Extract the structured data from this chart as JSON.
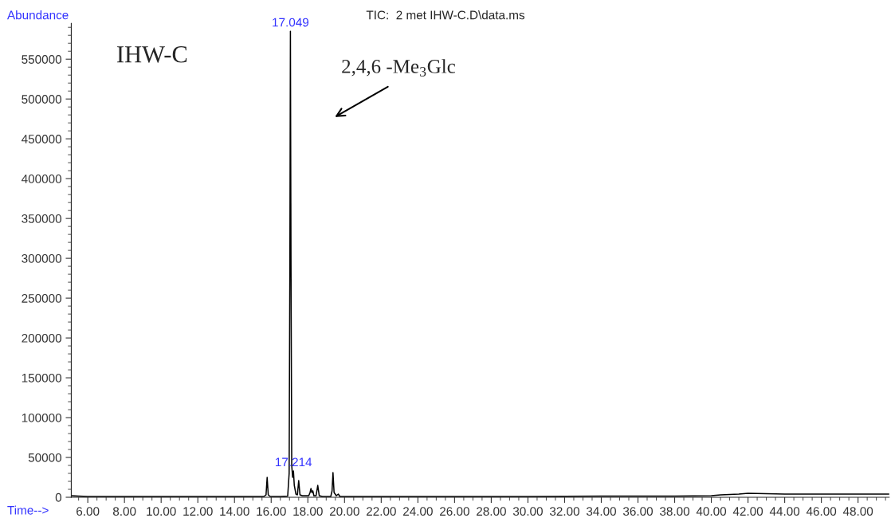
{
  "chart_data": {
    "type": "line",
    "title": "TIC:  2 met IHW-C.D\\data.ms",
    "xlabel": "Time-->",
    "ylabel": "Abundance",
    "series": [
      {
        "color": "#000000",
        "x": [
          5.1,
          5.5,
          6.0,
          8.0,
          10.0,
          12.0,
          14.0,
          15.6,
          15.72,
          15.78,
          15.84,
          15.95,
          16.5,
          16.9,
          16.98,
          17.02,
          17.049,
          17.08,
          17.12,
          17.17,
          17.214,
          17.26,
          17.35,
          17.43,
          17.5,
          17.57,
          17.7,
          18.05,
          18.12,
          18.17,
          18.22,
          18.27,
          18.33,
          18.45,
          18.54,
          18.62,
          18.8,
          19.25,
          19.32,
          19.37,
          19.43,
          19.55,
          19.66,
          19.75,
          20.0,
          22.0,
          26.0,
          30.0,
          34.0,
          38.0,
          40.0,
          40.5,
          41.5,
          42.0,
          44.0,
          46.0,
          48.0,
          49.7
        ],
        "values": [
          2000,
          1500,
          1000,
          1000,
          1000,
          1000,
          1000,
          1000,
          3000,
          25000,
          3000,
          1000,
          1000,
          1500,
          30000,
          300000,
          585000,
          300000,
          40000,
          25000,
          33000,
          15000,
          4000,
          3000,
          21000,
          3000,
          2000,
          2000,
          6000,
          11000,
          6000,
          8000,
          2000,
          2000,
          15000,
          2000,
          1000,
          1000,
          8000,
          31000,
          6000,
          2000,
          4000,
          1000,
          1000,
          1000,
          1000,
          1000,
          1500,
          1500,
          2000,
          3000,
          4000,
          5000,
          4000,
          4000,
          4000,
          4000
        ]
      }
    ],
    "xlim": [
      5.1,
      49.7
    ],
    "ylim": [
      0,
      595000
    ],
    "xticks": [
      {
        "value": 6,
        "label": "6.00"
      },
      {
        "value": 8,
        "label": "8.00"
      },
      {
        "value": 10,
        "label": "10.00"
      },
      {
        "value": 12,
        "label": "12.00"
      },
      {
        "value": 14,
        "label": "14.00"
      },
      {
        "value": 16,
        "label": "16.00"
      },
      {
        "value": 18,
        "label": "18.00"
      },
      {
        "value": 20,
        "label": "20.00"
      },
      {
        "value": 22,
        "label": "22.00"
      },
      {
        "value": 24,
        "label": "24.00"
      },
      {
        "value": 26,
        "label": "26.00"
      },
      {
        "value": 28,
        "label": "28.00"
      },
      {
        "value": 30,
        "label": "30.00"
      },
      {
        "value": 32,
        "label": "32.00"
      },
      {
        "value": 34,
        "label": "34.00"
      },
      {
        "value": 36,
        "label": "36.00"
      },
      {
        "value": 38,
        "label": "38.00"
      },
      {
        "value": 40,
        "label": "40.00"
      },
      {
        "value": 42,
        "label": "42.00"
      },
      {
        "value": 44,
        "label": "44.00"
      },
      {
        "value": 46,
        "label": "46.00"
      },
      {
        "value": 48,
        "label": "48.00"
      }
    ],
    "yticks": [
      0,
      50000,
      100000,
      150000,
      200000,
      250000,
      300000,
      350000,
      400000,
      450000,
      500000,
      550000
    ],
    "grid": false,
    "legend": false,
    "marker": "none",
    "line_style": "solid",
    "annotations": [
      {
        "text": "17.049",
        "x": 17.049,
        "y": 585000
      },
      {
        "text": "17.214",
        "x": 17.214,
        "y": 33000
      },
      "IHW-C",
      "2,4,6 -Me$_{3}$Glc"
    ]
  }
}
